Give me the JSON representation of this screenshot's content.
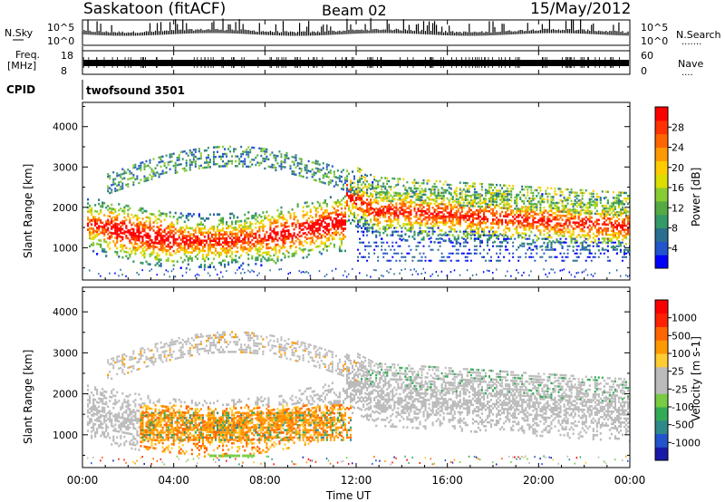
{
  "header": {
    "station": "Saskatoon (fitACF)",
    "beam": "Beam 02",
    "date": "15/May/2012"
  },
  "nsky": {
    "label": "N.Sky",
    "ytick_top": "10^5",
    "ytick_bottom": "10^0",
    "right_top": "10^5",
    "right_bottom": "10^0",
    "right_label": "N.Search",
    "right_dots": "......."
  },
  "freq": {
    "label_line1": "Freq.",
    "label_line2": "[MHz]",
    "ytick_top": "18",
    "ytick_bottom": "8",
    "right_top": "60",
    "right_bottom": "0",
    "right_label": "Nave",
    "right_dots": "...."
  },
  "cpid": {
    "label": "CPID",
    "value": "twofsound 3501"
  },
  "time_axis": {
    "label": "Time UT",
    "ticks": [
      "00:00",
      "04:00",
      "08:00",
      "12:00",
      "16:00",
      "20:00",
      "00:00"
    ]
  },
  "chart_data": [
    {
      "type": "heatmap",
      "name": "power",
      "ylabel": "Slant Range [km]",
      "yticks": [
        1000,
        2000,
        3000,
        4000
      ],
      "ylim": [
        200,
        4600
      ],
      "xlim_hours": [
        0,
        24
      ],
      "colorbar": {
        "label": "Power [dB]",
        "ticks": [
          "28",
          "24",
          "20",
          "16",
          "12",
          "8",
          "4"
        ],
        "colors": [
          "#0000ff",
          "#2255cc",
          "#2a6f8f",
          "#339966",
          "#55aa44",
          "#88cc33",
          "#dddd00",
          "#ffcc00",
          "#ff9900",
          "#ff6600",
          "#ff3300",
          "#ff0000"
        ]
      }
    },
    {
      "type": "heatmap",
      "name": "velocity",
      "ylabel": "Slant Range [km]",
      "yticks": [
        1000,
        2000,
        3000,
        4000
      ],
      "ylim": [
        200,
        4600
      ],
      "xlim_hours": [
        0,
        24
      ],
      "colorbar": {
        "label": "Velocity [m s-1]",
        "ticks": [
          "1000",
          "500",
          "100",
          "25",
          "-25",
          "-100",
          "-500",
          "-1000"
        ],
        "colors": [
          "#1a1aaa",
          "#2255cc",
          "#2e8a8a",
          "#33aa55",
          "#77cc44",
          "#bbbbbb",
          "#bbbbbb",
          "#ffcc33",
          "#ff9900",
          "#ff6600",
          "#ff2200",
          "#ff0000"
        ]
      }
    }
  ]
}
